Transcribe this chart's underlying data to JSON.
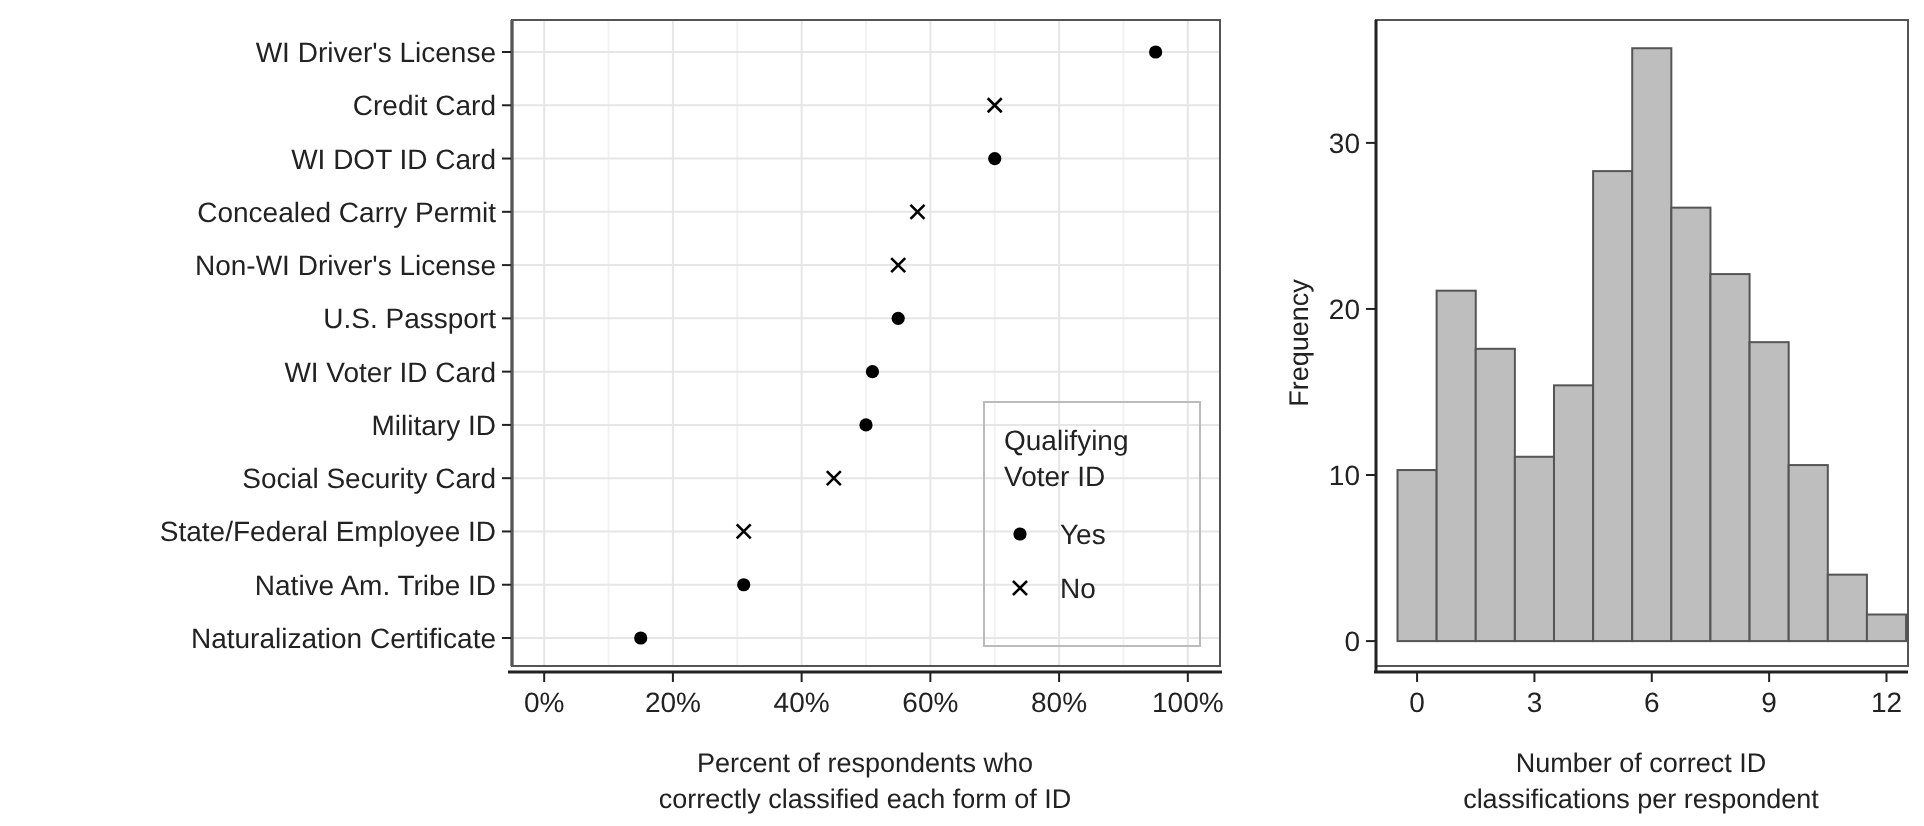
{
  "chart_data": [
    {
      "type": "scatter",
      "orientation": "horizontal",
      "categories": [
        "WI Driver's License",
        "Credit Card",
        "WI DOT ID Card",
        "Concealed Carry Permit",
        "Non-WI Driver's License",
        "U.S. Passport",
        "WI Voter ID Card",
        "Military ID",
        "Social Security Card",
        "State/Federal Employee ID",
        "Native Am. Tribe ID",
        "Naturalization Certificate"
      ],
      "series": [
        {
          "name": "Yes",
          "color": "#000000",
          "marker": "circle",
          "values": [
            95,
            null,
            70,
            null,
            null,
            55,
            51,
            50,
            null,
            null,
            31,
            15
          ]
        },
        {
          "name": "No",
          "color": "#000000",
          "marker": "cross",
          "values": [
            null,
            70,
            null,
            58,
            55,
            null,
            null,
            null,
            45,
            31,
            null,
            null
          ]
        }
      ],
      "xlim": [
        -5,
        105
      ],
      "xticks": [
        {
          "value": 0,
          "label": "0%"
        },
        {
          "value": 20,
          "label": "20%"
        },
        {
          "value": 40,
          "label": "40%"
        },
        {
          "value": 60,
          "label": "60%"
        },
        {
          "value": 80,
          "label": "80%"
        },
        {
          "value": 100,
          "label": "100%"
        }
      ],
      "xlabel": "Percent of respondents who\ncorrectly classified each form of ID",
      "legend_title": "Qualifying Voter ID",
      "legend": "bottom right",
      "grid": true
    },
    {
      "type": "histogram",
      "bins": [
        -0.5,
        0.5,
        1.5,
        2.5,
        3.5,
        4.5,
        5.5,
        6.5,
        7.5,
        8.5,
        9.5,
        10.5,
        11.5,
        12.5
      ],
      "values": [
        10.3,
        21.1,
        17.6,
        11.1,
        15.4,
        28.3,
        35.7,
        26.1,
        22.1,
        18.0,
        10.6,
        4.0,
        1.6
      ],
      "color": "#bebebe",
      "xlim": [
        -1.05,
        12.55
      ],
      "ylim": [
        -1.5,
        37.4
      ],
      "xticks": [
        0,
        3,
        6,
        9,
        12
      ],
      "yticks": [
        0,
        10,
        20,
        30
      ],
      "xlabel": "Number of correct ID\nclassifications per respondent",
      "ylabel": "Frequency",
      "grid": false
    }
  ]
}
